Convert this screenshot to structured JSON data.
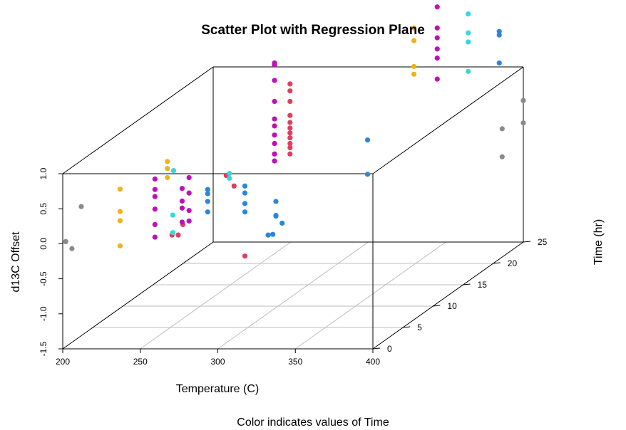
{
  "chart_data": {
    "type": "scatter",
    "title": "Scatter Plot with Regression Plane",
    "xlabel": "Temperature (C)",
    "ylabel": "Time (hr)",
    "zlabel": "d13C Offset",
    "subtitle": "Color indicates values of Time",
    "xlim": [
      200,
      400
    ],
    "ylim": [
      0,
      25
    ],
    "zlim": [
      -1.5,
      1.0
    ],
    "x_ticks": [
      "200",
      "250",
      "300",
      "350",
      "400"
    ],
    "y_ticks": [
      "0",
      "5",
      "10",
      "15",
      "20",
      "25"
    ],
    "z_ticks": [
      "-1.5",
      "-1.0",
      "-0.5",
      "0.0",
      "0.5",
      "1.0"
    ],
    "grid": true,
    "colors": {
      "gray": "#8a8a8a",
      "red": "#df3f5b",
      "orange": "#f0b21a",
      "magenta": "#bd11b7",
      "blue": "#2a86df",
      "cyan": "#35d7de"
    },
    "points": [
      {
        "x": 200,
        "y": 0.5,
        "z": 0.0,
        "c": "gray"
      },
      {
        "x": 204,
        "y": 0.5,
        "z": -0.1,
        "c": "gray"
      },
      {
        "x": 210,
        "y": 0.5,
        "z": 0.5,
        "c": "gray"
      },
      {
        "x": 398,
        "y": 22,
        "z": 0.3,
        "c": "gray"
      },
      {
        "x": 398,
        "y": 22,
        "z": -0.1,
        "c": "gray"
      },
      {
        "x": 400,
        "y": 25,
        "z": 0.52,
        "c": "gray"
      },
      {
        "x": 400,
        "y": 25,
        "z": 0.2,
        "c": "gray"
      },
      {
        "x": 253,
        "y": 4.5,
        "z": -0.15,
        "c": "red"
      },
      {
        "x": 257,
        "y": 4.5,
        "z": -0.15,
        "c": "red"
      },
      {
        "x": 260,
        "y": 4.5,
        "z": -0.0,
        "c": "red"
      },
      {
        "x": 288,
        "y": 4.5,
        "z": 0.7,
        "c": "red"
      },
      {
        "x": 293,
        "y": 4.5,
        "z": 0.55,
        "c": "red"
      },
      {
        "x": 300,
        "y": 4.5,
        "z": -0.45,
        "c": "red"
      },
      {
        "x": 300,
        "y": 12,
        "z": 1.55,
        "c": "red"
      },
      {
        "x": 300,
        "y": 12,
        "z": 1.45,
        "c": "red"
      },
      {
        "x": 300,
        "y": 12,
        "z": 1.3,
        "c": "red"
      },
      {
        "x": 300,
        "y": 12,
        "z": 1.1,
        "c": "red"
      },
      {
        "x": 300,
        "y": 12,
        "z": 1.0,
        "c": "red"
      },
      {
        "x": 300,
        "y": 12,
        "z": 0.92,
        "c": "red"
      },
      {
        "x": 300,
        "y": 12,
        "z": 0.85,
        "c": "red"
      },
      {
        "x": 300,
        "y": 12,
        "z": 0.78,
        "c": "red"
      },
      {
        "x": 300,
        "y": 12,
        "z": 0.7,
        "c": "red"
      },
      {
        "x": 300,
        "y": 12,
        "z": 0.64,
        "c": "red"
      },
      {
        "x": 300,
        "y": 12,
        "z": 0.55,
        "c": "red"
      },
      {
        "x": 230,
        "y": 1.8,
        "z": 0.67,
        "c": "orange"
      },
      {
        "x": 230,
        "y": 1.8,
        "z": 0.35,
        "c": "orange"
      },
      {
        "x": 230,
        "y": 1.8,
        "z": 0.22,
        "c": "orange"
      },
      {
        "x": 230,
        "y": 1.8,
        "z": -0.14,
        "c": "orange"
      },
      {
        "x": 250,
        "y": 4.5,
        "z": 0.9,
        "c": "orange"
      },
      {
        "x": 250,
        "y": 4.5,
        "z": 0.8,
        "c": "orange"
      },
      {
        "x": 250,
        "y": 4.5,
        "z": 0.67,
        "c": "orange"
      },
      {
        "x": 345,
        "y": 21,
        "z": 1.8,
        "c": "orange"
      },
      {
        "x": 345,
        "y": 21,
        "z": 1.62,
        "c": "orange"
      },
      {
        "x": 345,
        "y": 21,
        "z": 1.25,
        "c": "orange"
      },
      {
        "x": 345,
        "y": 21,
        "z": 1.14,
        "c": "orange"
      },
      {
        "x": 242,
        "y": 4.5,
        "z": 0.65,
        "c": "magenta"
      },
      {
        "x": 242,
        "y": 4.5,
        "z": 0.5,
        "c": "magenta"
      },
      {
        "x": 242,
        "y": 4.5,
        "z": 0.4,
        "c": "magenta"
      },
      {
        "x": 242,
        "y": 4.5,
        "z": 0.22,
        "c": "magenta"
      },
      {
        "x": 242,
        "y": 4.5,
        "z": 0.0,
        "c": "magenta"
      },
      {
        "x": 242,
        "y": 4.5,
        "z": -0.18,
        "c": "magenta"
      },
      {
        "x": 264,
        "y": 4.5,
        "z": 0.67,
        "c": "magenta"
      },
      {
        "x": 264,
        "y": 4.5,
        "z": 0.45,
        "c": "magenta"
      },
      {
        "x": 264,
        "y": 4.5,
        "z": 0.2,
        "c": "magenta"
      },
      {
        "x": 264,
        "y": 4.5,
        "z": 0.05,
        "c": "magenta"
      },
      {
        "x": 270,
        "y": 1.8,
        "z": 0.68,
        "c": "magenta"
      },
      {
        "x": 270,
        "y": 1.8,
        "z": 0.5,
        "c": "magenta"
      },
      {
        "x": 270,
        "y": 1.8,
        "z": 0.4,
        "c": "magenta"
      },
      {
        "x": 270,
        "y": 1.8,
        "z": 0.2,
        "c": "magenta"
      },
      {
        "x": 290,
        "y": 12,
        "z": 1.85,
        "c": "magenta"
      },
      {
        "x": 290,
        "y": 12,
        "z": 1.82,
        "c": "magenta"
      },
      {
        "x": 290,
        "y": 12,
        "z": 1.6,
        "c": "magenta"
      },
      {
        "x": 290,
        "y": 12,
        "z": 1.3,
        "c": "magenta"
      },
      {
        "x": 290,
        "y": 12,
        "z": 1.05,
        "c": "magenta"
      },
      {
        "x": 290,
        "y": 12,
        "z": 0.95,
        "c": "magenta"
      },
      {
        "x": 290,
        "y": 12,
        "z": 0.82,
        "c": "magenta"
      },
      {
        "x": 290,
        "y": 12,
        "z": 0.7,
        "c": "magenta"
      },
      {
        "x": 290,
        "y": 12,
        "z": 0.55,
        "c": "magenta"
      },
      {
        "x": 290,
        "y": 12,
        "z": 0.45,
        "c": "magenta"
      },
      {
        "x": 360,
        "y": 21,
        "z": 2.3,
        "c": "magenta"
      },
      {
        "x": 360,
        "y": 21,
        "z": 2.1,
        "c": "magenta"
      },
      {
        "x": 360,
        "y": 21,
        "z": 1.8,
        "c": "magenta"
      },
      {
        "x": 360,
        "y": 21,
        "z": 1.66,
        "c": "magenta"
      },
      {
        "x": 360,
        "y": 21,
        "z": 1.5,
        "c": "magenta"
      },
      {
        "x": 360,
        "y": 21,
        "z": 1.37,
        "c": "magenta"
      },
      {
        "x": 360,
        "y": 21,
        "z": 1.07,
        "c": "magenta"
      },
      {
        "x": 276,
        "y": 4.5,
        "z": 0.5,
        "c": "blue"
      },
      {
        "x": 276,
        "y": 4.5,
        "z": 0.44,
        "c": "blue"
      },
      {
        "x": 276,
        "y": 4.5,
        "z": 0.33,
        "c": "blue"
      },
      {
        "x": 276,
        "y": 4.5,
        "z": 0.18,
        "c": "blue"
      },
      {
        "x": 300,
        "y": 4.5,
        "z": 0.55,
        "c": "blue"
      },
      {
        "x": 300,
        "y": 4.5,
        "z": 0.45,
        "c": "blue"
      },
      {
        "x": 300,
        "y": 4.5,
        "z": 0.3,
        "c": "blue"
      },
      {
        "x": 300,
        "y": 4.5,
        "z": 0.18,
        "c": "blue"
      },
      {
        "x": 320,
        "y": 4.5,
        "z": 0.33,
        "c": "blue"
      },
      {
        "x": 320,
        "y": 4.5,
        "z": 0.13,
        "c": "blue"
      },
      {
        "x": 320,
        "y": 4.5,
        "z": 0.12,
        "c": "blue"
      },
      {
        "x": 315,
        "y": 4.5,
        "z": -0.15,
        "c": "blue"
      },
      {
        "x": 318,
        "y": 4.5,
        "z": -0.14,
        "c": "blue"
      },
      {
        "x": 324,
        "y": 4.5,
        "z": 0.02,
        "c": "blue"
      },
      {
        "x": 350,
        "y": 12,
        "z": 0.75,
        "c": "blue"
      },
      {
        "x": 350,
        "y": 12,
        "z": 0.26,
        "c": "blue"
      },
      {
        "x": 400,
        "y": 21,
        "z": 1.75,
        "c": "blue"
      },
      {
        "x": 400,
        "y": 21,
        "z": 1.7,
        "c": "blue"
      },
      {
        "x": 400,
        "y": 21,
        "z": 1.3,
        "c": "blue"
      },
      {
        "x": 254,
        "y": 4.5,
        "z": 0.77,
        "c": "cyan"
      },
      {
        "x": 264,
        "y": 1.8,
        "z": 0.3,
        "c": "cyan"
      },
      {
        "x": 264,
        "y": 1.8,
        "z": 0.05,
        "c": "cyan"
      },
      {
        "x": 290,
        "y": 4.5,
        "z": 0.73,
        "c": "cyan"
      },
      {
        "x": 290,
        "y": 4.5,
        "z": 0.66,
        "c": "cyan"
      },
      {
        "x": 380,
        "y": 21,
        "z": 2.0,
        "c": "cyan"
      },
      {
        "x": 380,
        "y": 21,
        "z": 1.73,
        "c": "cyan"
      },
      {
        "x": 380,
        "y": 21,
        "z": 1.6,
        "c": "cyan"
      },
      {
        "x": 380,
        "y": 21,
        "z": 1.18,
        "c": "cyan"
      }
    ]
  }
}
